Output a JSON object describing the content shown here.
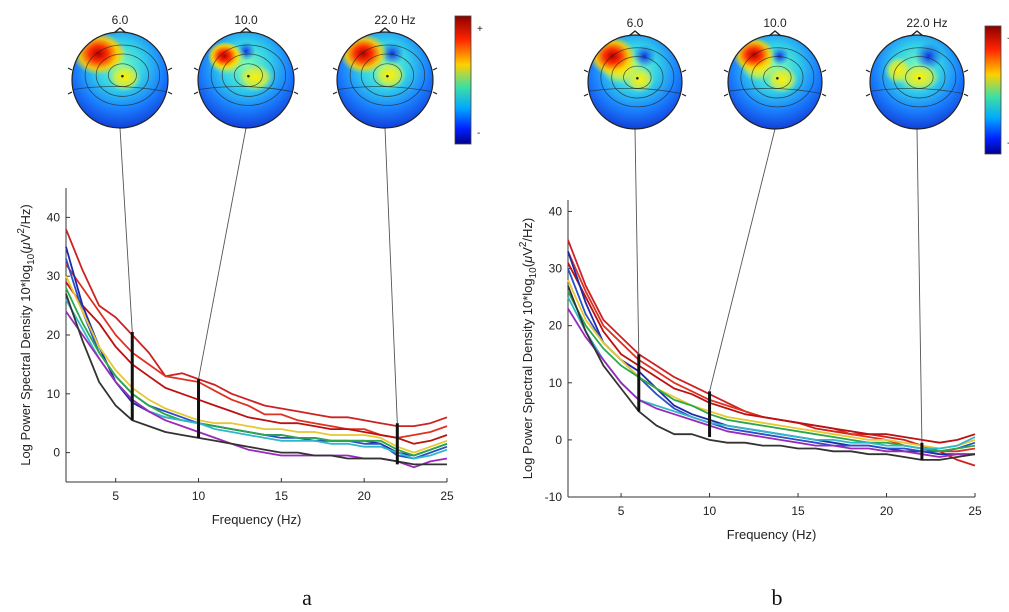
{
  "figure": {
    "panel_labels": [
      "a",
      "b"
    ],
    "colorbar_plus": "+",
    "colorbar_minus": "-"
  },
  "chart_data": [
    {
      "panel": "a",
      "type": "line",
      "xlabel": "Frequency (Hz)",
      "ylabel_parts": [
        "Log Power Spectral Density 10*log",
        "10",
        "(",
        "μ",
        "V",
        "2",
        "/Hz)"
      ],
      "xlim": [
        2,
        25
      ],
      "ylim": [
        -5,
        45
      ],
      "xticks": [
        5,
        10,
        15,
        20,
        25
      ],
      "yticks": [
        0,
        10,
        20,
        30,
        40
      ],
      "topo_labels": [
        "6.0",
        "10.0",
        "22.0 Hz"
      ],
      "markers": [
        {
          "freq": 6,
          "range": [
            5.5,
            20.5
          ]
        },
        {
          "freq": 10,
          "range": [
            2.5,
            12.5
          ]
        },
        {
          "freq": 22,
          "range": [
            -2,
            5
          ]
        }
      ],
      "x": [
        2,
        3,
        4,
        5,
        6,
        7,
        8,
        9,
        10,
        11,
        12,
        13,
        14,
        15,
        16,
        17,
        18,
        19,
        20,
        21,
        22,
        23,
        24,
        25
      ],
      "series": [
        {
          "color": "#cc2222",
          "values": [
            38,
            31,
            25,
            23,
            20,
            17,
            13,
            13.5,
            12.5,
            11.5,
            10,
            9,
            8,
            7.5,
            7,
            6.5,
            6,
            6,
            5.5,
            5,
            4.5,
            4.5,
            5,
            6
          ]
        },
        {
          "color": "#dd3322",
          "values": [
            32,
            28,
            24,
            20,
            17,
            15,
            13,
            12.5,
            12,
            10.5,
            9,
            8,
            6.5,
            6.5,
            5.5,
            5,
            4.5,
            4,
            4,
            3,
            2.5,
            3,
            3.5,
            4.5
          ]
        },
        {
          "color": "#bb1111",
          "values": [
            29,
            25,
            22,
            18,
            15,
            13,
            11,
            10,
            9,
            8,
            7,
            6,
            5.5,
            5,
            5,
            4.5,
            4,
            4,
            3.5,
            3,
            2.5,
            1.5,
            2,
            3
          ]
        },
        {
          "color": "#1f2aa8",
          "values": [
            35,
            25,
            18,
            12,
            8.5,
            7,
            6,
            5.5,
            5,
            4.5,
            4,
            3.5,
            3,
            3,
            2.5,
            2.5,
            2,
            2,
            2,
            1.5,
            0,
            -0.5,
            0.5,
            1.5
          ]
        },
        {
          "color": "#2a50c8",
          "values": [
            33,
            24,
            17,
            13,
            10,
            8,
            7,
            6,
            5,
            4.5,
            4,
            3.5,
            3,
            2.5,
            2.5,
            2,
            2,
            2,
            1.5,
            1.5,
            -0.5,
            -1,
            0,
            1
          ]
        },
        {
          "color": "#e8c830",
          "values": [
            30,
            24,
            18,
            14,
            11,
            9,
            7.5,
            6.5,
            5.5,
            5,
            5,
            4.5,
            4,
            4,
            3.5,
            3.5,
            3,
            3,
            3,
            2.5,
            1,
            0,
            1,
            2
          ]
        },
        {
          "color": "#2aa84a",
          "values": [
            28,
            22,
            17,
            13,
            10,
            8,
            6.5,
            5.5,
            5,
            4.5,
            4,
            3.5,
            3,
            3,
            2.5,
            2.5,
            2,
            2,
            2,
            2,
            0.5,
            -0.5,
            0.5,
            1.5
          ]
        },
        {
          "color": "#30b8c8",
          "values": [
            26,
            21,
            16,
            12,
            9,
            7,
            6,
            5.5,
            5,
            4,
            3.5,
            3,
            2.5,
            2,
            2,
            2,
            1.5,
            1.5,
            1,
            1,
            0,
            -1,
            -0.5,
            0.5
          ]
        },
        {
          "color": "#9a2ab8",
          "values": [
            24,
            20,
            16,
            12,
            9,
            7,
            5.5,
            4.5,
            3.5,
            2.5,
            1.5,
            0.5,
            0,
            -0.5,
            -0.5,
            -0.5,
            -0.5,
            -0.5,
            -1,
            -1,
            -1.5,
            -2.5,
            -1.5,
            -1
          ]
        },
        {
          "color": "#333333",
          "values": [
            27,
            19,
            12,
            8,
            5.5,
            4.5,
            3.5,
            3,
            2.5,
            2,
            1.5,
            1,
            0.5,
            0,
            0,
            -0.5,
            -0.5,
            -1,
            -1,
            -1,
            -1.5,
            -2,
            -2,
            -2
          ]
        }
      ]
    },
    {
      "panel": "b",
      "type": "line",
      "xlabel": "Frequency (Hz)",
      "ylabel_parts": [
        "Log Power Spectral Density 10*log",
        "10",
        "(",
        "μ",
        "V",
        "2",
        "/Hz)"
      ],
      "xlim": [
        2,
        25
      ],
      "ylim": [
        -10,
        42
      ],
      "xticks": [
        5,
        10,
        15,
        20,
        25
      ],
      "yticks": [
        -10,
        0,
        10,
        20,
        30,
        40
      ],
      "topo_labels": [
        "6.0",
        "10.0",
        "22.0 Hz"
      ],
      "markers": [
        {
          "freq": 6,
          "range": [
            5,
            15
          ]
        },
        {
          "freq": 10,
          "range": [
            0.5,
            8.5
          ]
        },
        {
          "freq": 22,
          "range": [
            -3.5,
            -0.5
          ]
        }
      ],
      "x": [
        2,
        3,
        4,
        5,
        6,
        7,
        8,
        9,
        10,
        11,
        12,
        13,
        14,
        15,
        16,
        17,
        18,
        19,
        20,
        21,
        22,
        23,
        24,
        25
      ],
      "series": [
        {
          "color": "#cc2222",
          "values": [
            35,
            27,
            21,
            18,
            15,
            13,
            11,
            9.5,
            8,
            6.5,
            5,
            4,
            3.5,
            3,
            2,
            1.5,
            1,
            1,
            0.5,
            0,
            -1,
            -2,
            -3.5,
            -4.5
          ]
        },
        {
          "color": "#dd3322",
          "values": [
            33,
            26,
            20,
            17,
            14,
            12,
            10,
            8.5,
            7,
            6,
            5,
            4,
            3.5,
            3,
            2.5,
            2,
            1,
            0.5,
            0,
            -1,
            -1.5,
            -2,
            -2,
            -1.5
          ]
        },
        {
          "color": "#bb1111",
          "values": [
            31,
            25,
            19,
            15,
            13,
            11,
            9,
            8,
            6.5,
            5.5,
            4.5,
            4,
            3.5,
            3,
            2.5,
            2,
            1.5,
            1,
            1,
            0.5,
            0,
            -0.5,
            0,
            1
          ]
        },
        {
          "color": "#1f2aa8",
          "values": [
            33,
            24,
            17,
            14,
            12,
            9,
            6,
            4.5,
            3.5,
            2.5,
            2,
            1.5,
            1,
            0.5,
            0,
            -0.5,
            -1,
            -1,
            -1.5,
            -2,
            -2,
            -2.5,
            -2.5,
            -2.5
          ]
        },
        {
          "color": "#2a50c8",
          "values": [
            30,
            22,
            17,
            14,
            11,
            8,
            5.5,
            4,
            3,
            2,
            1.5,
            1,
            0.5,
            0,
            -0.5,
            -1,
            -1,
            -1,
            -1.5,
            -1.5,
            -2,
            -2,
            -1.5,
            -0.5
          ]
        },
        {
          "color": "#e8c830",
          "values": [
            28,
            21,
            17,
            14,
            11,
            9,
            7.5,
            6,
            5,
            4,
            3.5,
            3,
            2.5,
            2,
            1.5,
            1,
            0.5,
            0,
            0,
            -0.5,
            -1,
            -1.5,
            -1,
            0
          ]
        },
        {
          "color": "#2aa84a",
          "values": [
            26,
            20,
            16,
            13,
            11,
            9,
            7,
            6,
            4.5,
            3.5,
            3,
            2.5,
            2,
            1.5,
            1,
            0.5,
            0,
            -0.5,
            -0.5,
            -1,
            -1.5,
            -2,
            -1.5,
            -1
          ]
        },
        {
          "color": "#30b8c8",
          "values": [
            25,
            19,
            14,
            10,
            7,
            6,
            5,
            4,
            3,
            2.5,
            2,
            1.5,
            1,
            0.5,
            0,
            0,
            -0.5,
            -0.5,
            -1,
            -1,
            -1.5,
            -1.5,
            -1,
            0.5
          ]
        },
        {
          "color": "#9a2ab8",
          "values": [
            23,
            18,
            14,
            10,
            7,
            5.5,
            4.5,
            3.5,
            2.5,
            1.5,
            1,
            0.5,
            0,
            -0.5,
            -1,
            -1,
            -1.5,
            -1.5,
            -2,
            -2,
            -2.5,
            -3,
            -2.5,
            -2.5
          ]
        },
        {
          "color": "#333333",
          "values": [
            27,
            19,
            13,
            9,
            5,
            2.5,
            1,
            1,
            0,
            -0.5,
            -0.5,
            -1,
            -1,
            -1.5,
            -1.5,
            -2,
            -2,
            -2.5,
            -2.5,
            -3,
            -3.5,
            -3.5,
            -3,
            -2.5
          ]
        }
      ]
    }
  ]
}
